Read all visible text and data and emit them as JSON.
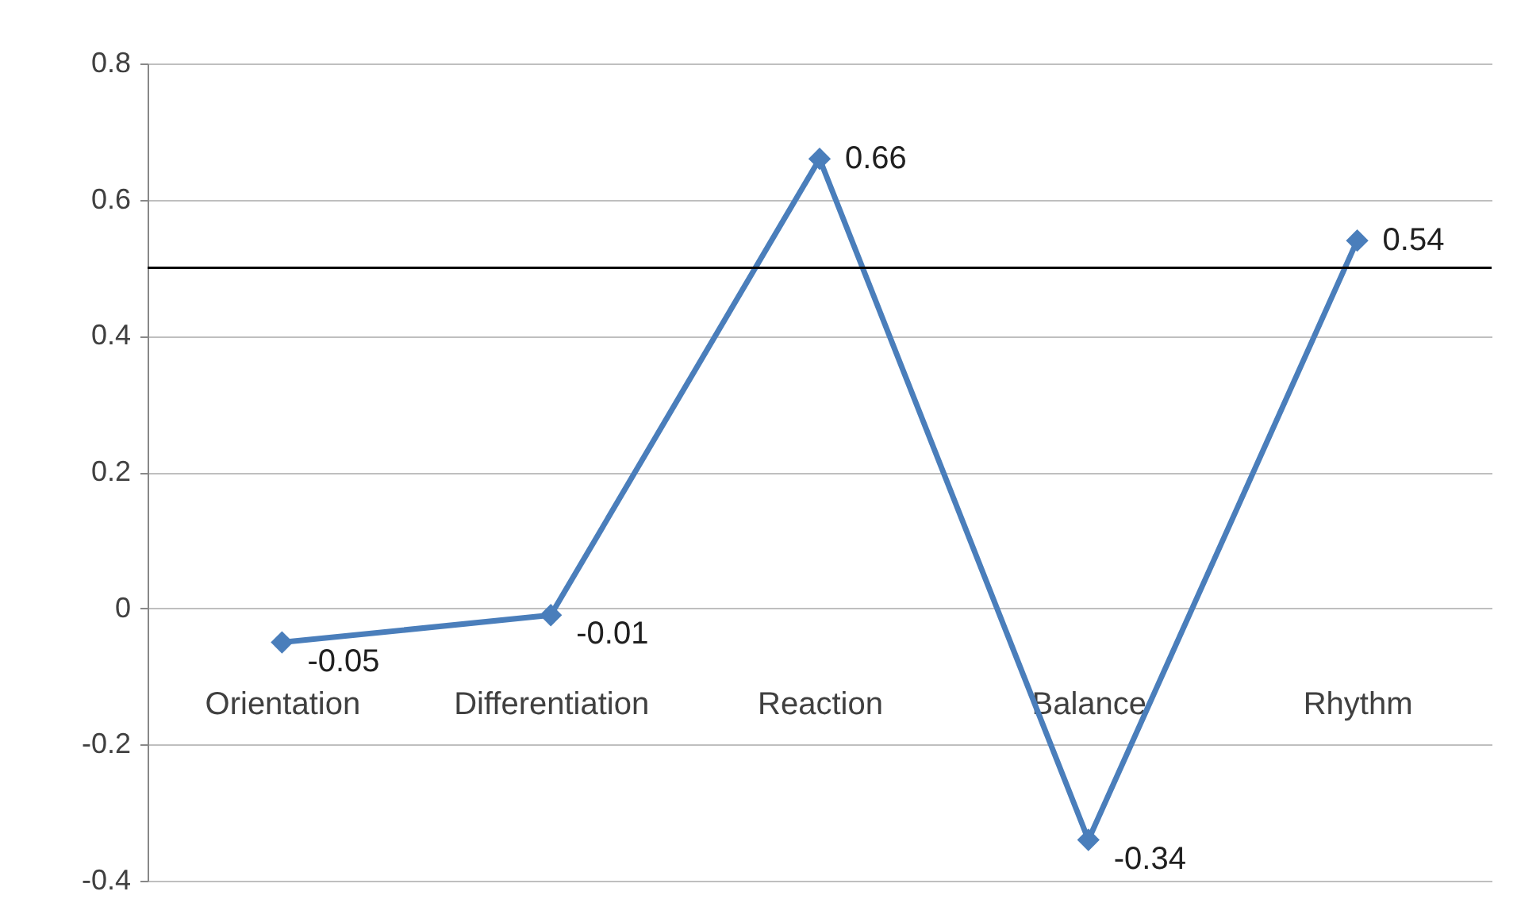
{
  "chart_data": {
    "type": "line",
    "categories": [
      "Orientation",
      "Differentiation",
      "Reaction",
      "Balance",
      "Rhythm"
    ],
    "series": [
      {
        "color": "#4a7ebb",
        "values": [
          -0.05,
          -0.01,
          0.66,
          -0.34,
          0.54
        ]
      }
    ],
    "ylim": [
      -0.4,
      0.8
    ],
    "yticks": [
      -0.4,
      -0.2,
      0,
      0.2,
      0.4,
      0.6,
      0.8
    ],
    "grid": "y",
    "marker": "diamond",
    "line_style": "solid",
    "data_labels": true,
    "ref_lines": [
      {
        "axis": "y",
        "value": 0.5,
        "color": "#000000"
      }
    ]
  }
}
